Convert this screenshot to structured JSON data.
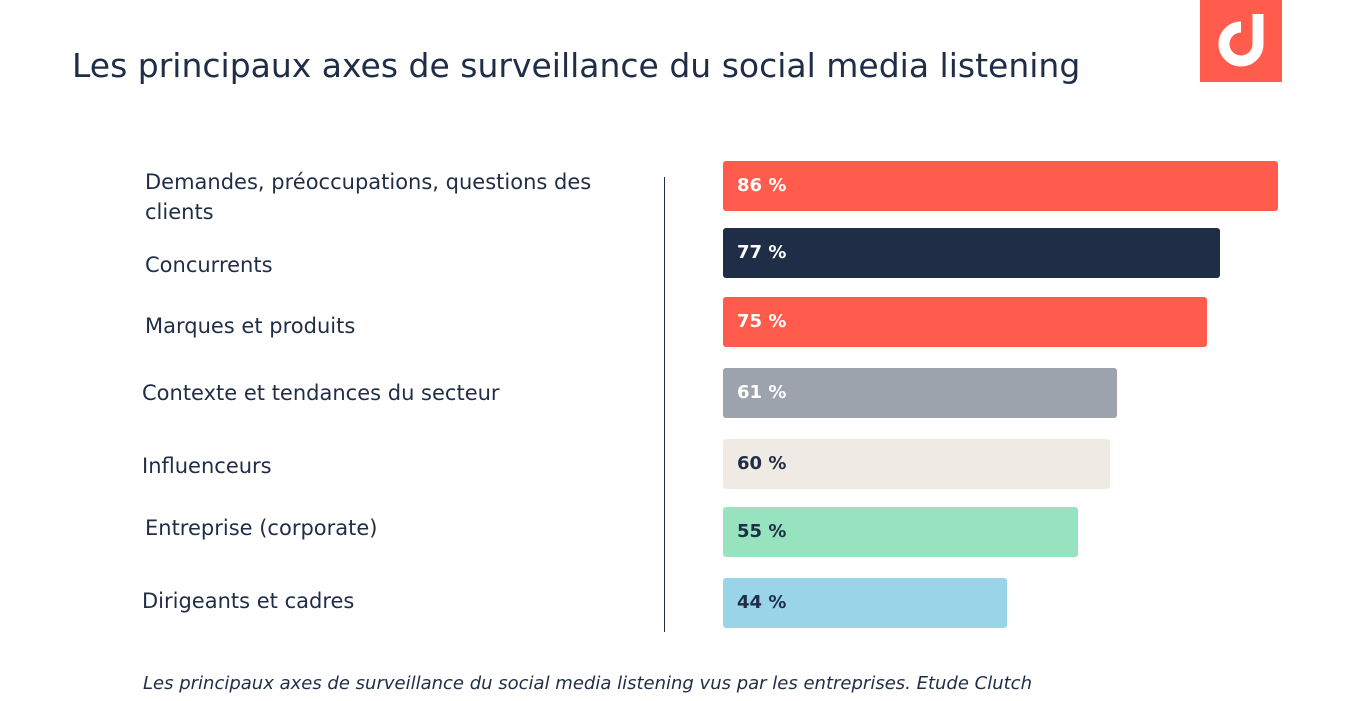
{
  "title": "Les principaux axes de surveillance du social media listening",
  "logo": {
    "icon": "brand-d-icon",
    "color": "#ff5c4d"
  },
  "chart_data": {
    "type": "bar",
    "orientation": "horizontal",
    "categories": [
      "Demandes, préoccupations, questions des clients",
      "Concurrents",
      "Marques et produits",
      "Contexte et tendances du secteur",
      "Influenceurs",
      "Entreprise (corporate)",
      "Dirigeants et cadres"
    ],
    "values": [
      86,
      77,
      75,
      61,
      60,
      55,
      44
    ],
    "value_labels": [
      "86 %",
      "77 %",
      "75 %",
      "61 %",
      "60 %",
      "55 %",
      "44 %"
    ],
    "bar_colors": [
      "#ff5c4d",
      "#1f2d47",
      "#ff5c4d",
      "#9ca3ad",
      "#efeae3",
      "#97e3c0",
      "#9ad4e9"
    ],
    "label_colors": [
      "#ffffff",
      "#ffffff",
      "#ffffff",
      "#ffffff",
      "#1f2d47",
      "#1f2d47",
      "#1f2d47"
    ],
    "xlim": [
      0,
      86
    ],
    "grid": false,
    "legend": "none"
  },
  "caption": "Les principaux axes de surveillance du social media listening vus par les entreprises. Etude Clutch"
}
